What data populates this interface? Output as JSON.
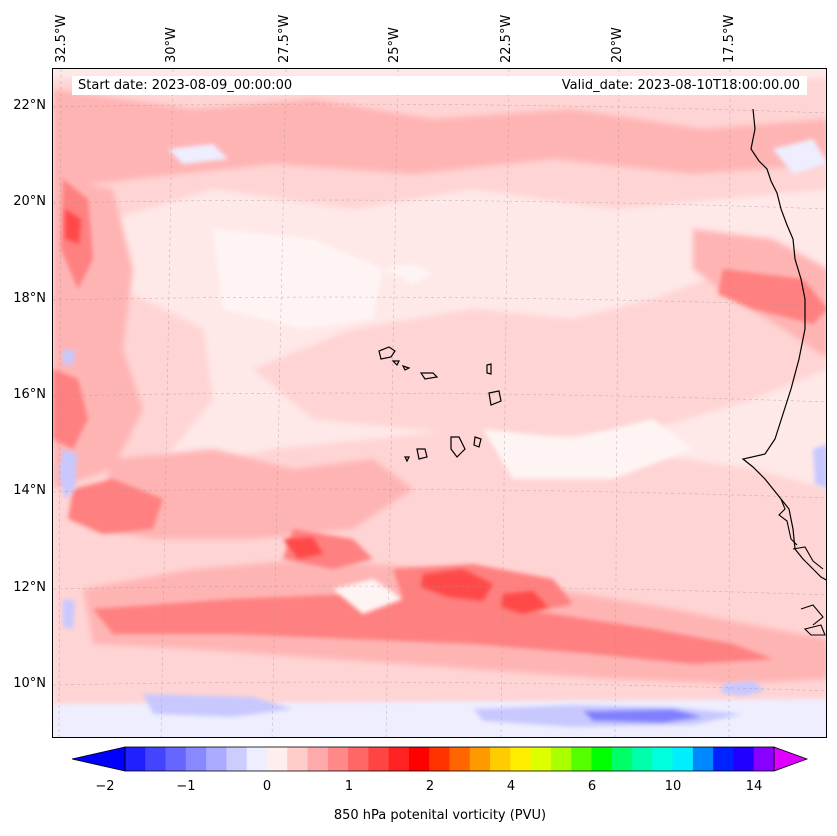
{
  "header": {
    "start_date": "Start date: 2023-08-09_00:00:00",
    "valid_date": "Valid_date: 2023-08-10T18:00:00.00"
  },
  "lon_labels": [
    "32.5°W",
    "30°W",
    "27.5°W",
    "25°W",
    "22.5°W",
    "20°W",
    "17.5°W"
  ],
  "lat_labels": [
    "22°N",
    "20°N",
    "18°N",
    "16°N",
    "14°N",
    "12°N",
    "10°N"
  ],
  "colorbar": {
    "label": "850 hPa potenital vorticity (PVU)",
    "ticks": [
      "−2",
      "−1",
      "0",
      "1",
      "2",
      "4",
      "6",
      "10",
      "14"
    ],
    "colors": [
      "#0000ff",
      "#2020ff",
      "#4444ff",
      "#6666ff",
      "#8888ff",
      "#aaaaff",
      "#ccccff",
      "#eeeeff",
      "#ffeeee",
      "#ffcccc",
      "#ffaaaa",
      "#ff8888",
      "#ff6666",
      "#ff4444",
      "#ff2222",
      "#ff0000",
      "#ff3300",
      "#ff6600",
      "#ff9900",
      "#ffcc00",
      "#ffee00",
      "#ddff00",
      "#aaff00",
      "#55ff00",
      "#00ff00",
      "#00ff66",
      "#00ffaa",
      "#00ffdd",
      "#00eeff",
      "#0088ff",
      "#0022ff",
      "#2200ff",
      "#8800ff",
      "#dd00ff"
    ]
  },
  "colors": {
    "background_field": "#ffe8e8",
    "light_field": "#ffd4d4",
    "mid_field": "#ffb4b4",
    "strong_field": "#ff8080",
    "intense_field": "#ff4a4a",
    "negative_light": "#eeeeff",
    "negative_mid": "#c8c8ff",
    "negative_strong": "#8080ff",
    "coastline": "#000000"
  }
}
